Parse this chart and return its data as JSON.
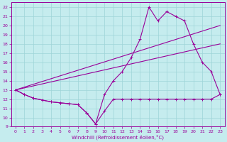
{
  "xlabel": "Windchill (Refroidissement éolien,°C)",
  "ylabel": "",
  "xlim": [
    -0.5,
    23.5
  ],
  "ylim": [
    9,
    22.5
  ],
  "xticks": [
    0,
    1,
    2,
    3,
    4,
    5,
    6,
    7,
    8,
    9,
    10,
    11,
    12,
    13,
    14,
    15,
    16,
    17,
    18,
    19,
    20,
    21,
    22,
    23
  ],
  "yticks": [
    9,
    10,
    11,
    12,
    13,
    14,
    15,
    16,
    17,
    18,
    19,
    20,
    21,
    22
  ],
  "background_color": "#c5ecee",
  "grid_color": "#9ed5d8",
  "line_color": "#990099",
  "lines": [
    {
      "x": [
        0,
        1,
        2,
        3,
        4,
        5,
        6,
        7,
        8,
        9,
        10,
        11,
        12,
        13,
        14,
        15,
        16,
        17,
        18,
        19,
        20,
        21,
        22,
        23
      ],
      "y": [
        13,
        12.5,
        12.1,
        11.9,
        11.7,
        11.6,
        11.5,
        11.4,
        10.5,
        9.3,
        10.7,
        12.0,
        12.0,
        12.0,
        12.0,
        12.0,
        12.0,
        12.0,
        12.0,
        12.0,
        12.0,
        12.0,
        12.0,
        12.5
      ],
      "marker": true
    },
    {
      "x": [
        0,
        1,
        2,
        3,
        4,
        5,
        6,
        7,
        8,
        9,
        10,
        11,
        12,
        13,
        14,
        15,
        16,
        17,
        18,
        19,
        20,
        21,
        22,
        23
      ],
      "y": [
        13,
        12.5,
        12.1,
        11.9,
        11.7,
        11.6,
        11.5,
        11.4,
        10.5,
        9.3,
        12.5,
        14.0,
        15.0,
        16.5,
        18.5,
        22.0,
        20.5,
        21.5,
        21.0,
        20.5,
        18.0,
        16.0,
        15.0,
        12.5
      ],
      "marker": true
    },
    {
      "x": [
        0,
        23
      ],
      "y": [
        13,
        18
      ],
      "marker": false
    },
    {
      "x": [
        0,
        23
      ],
      "y": [
        13,
        20
      ],
      "marker": false
    }
  ]
}
